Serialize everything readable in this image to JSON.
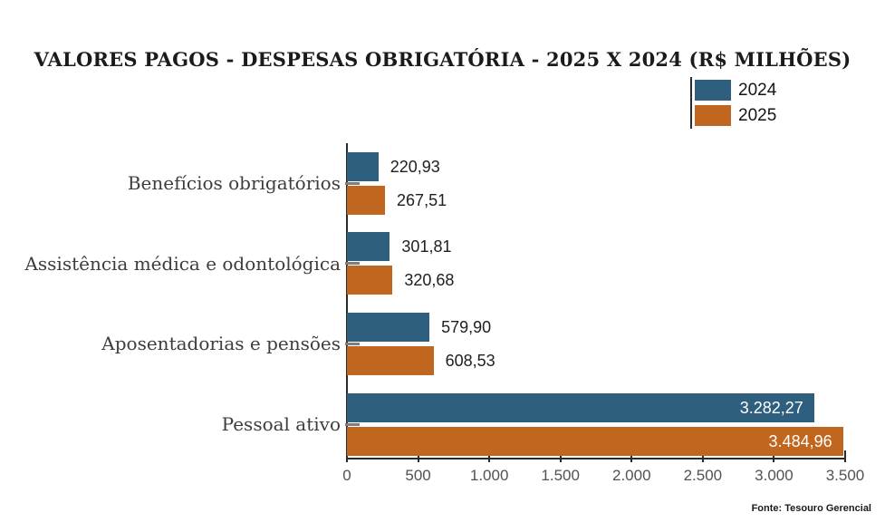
{
  "chart_data": {
    "type": "bar",
    "orientation": "horizontal",
    "title": "VALORES PAGOS - DESPESAS OBRIGATÓRIA - 2025 X 2024 (R$ MILHÕES)",
    "categories": [
      "Benefícios obrigatórios",
      "Assistência médica e odontológica",
      "Aposentadorias e pensões",
      "Pessoal ativo"
    ],
    "series": [
      {
        "name": "2024",
        "color": "#2E5F7F",
        "values": [
          220.93,
          301.81,
          579.9,
          3282.27
        ],
        "value_labels": [
          "220,93",
          "301,81",
          "579,90",
          "3.282,27"
        ]
      },
      {
        "name": "2025",
        "color": "#C1661E",
        "values": [
          267.51,
          320.68,
          608.53,
          3484.96
        ],
        "value_labels": [
          "267,51",
          "320,68",
          "608,53",
          "3.484,96"
        ]
      }
    ],
    "xlabel": "",
    "ylabel": "",
    "xlim": [
      0,
      3500
    ],
    "x_tick_values": [
      0,
      500,
      1000,
      1500,
      2000,
      2500,
      3000,
      3500
    ],
    "x_tick_labels": [
      "0",
      "500",
      "1.000",
      "1.500",
      "2.000",
      "2.500",
      "3.000",
      "3.500"
    ],
    "grid": false,
    "legend_position": "top-right"
  },
  "source": "Fonte: Tesouro Gerencial",
  "style_colors": {
    "axis": "#2b2b2b",
    "category_label": "#3d3d3d",
    "tick_label": "#525252",
    "value_label": "#202020",
    "value_label_inside": "#ffffff",
    "category_dash": "#7e7e7e",
    "background": "#ffffff"
  }
}
